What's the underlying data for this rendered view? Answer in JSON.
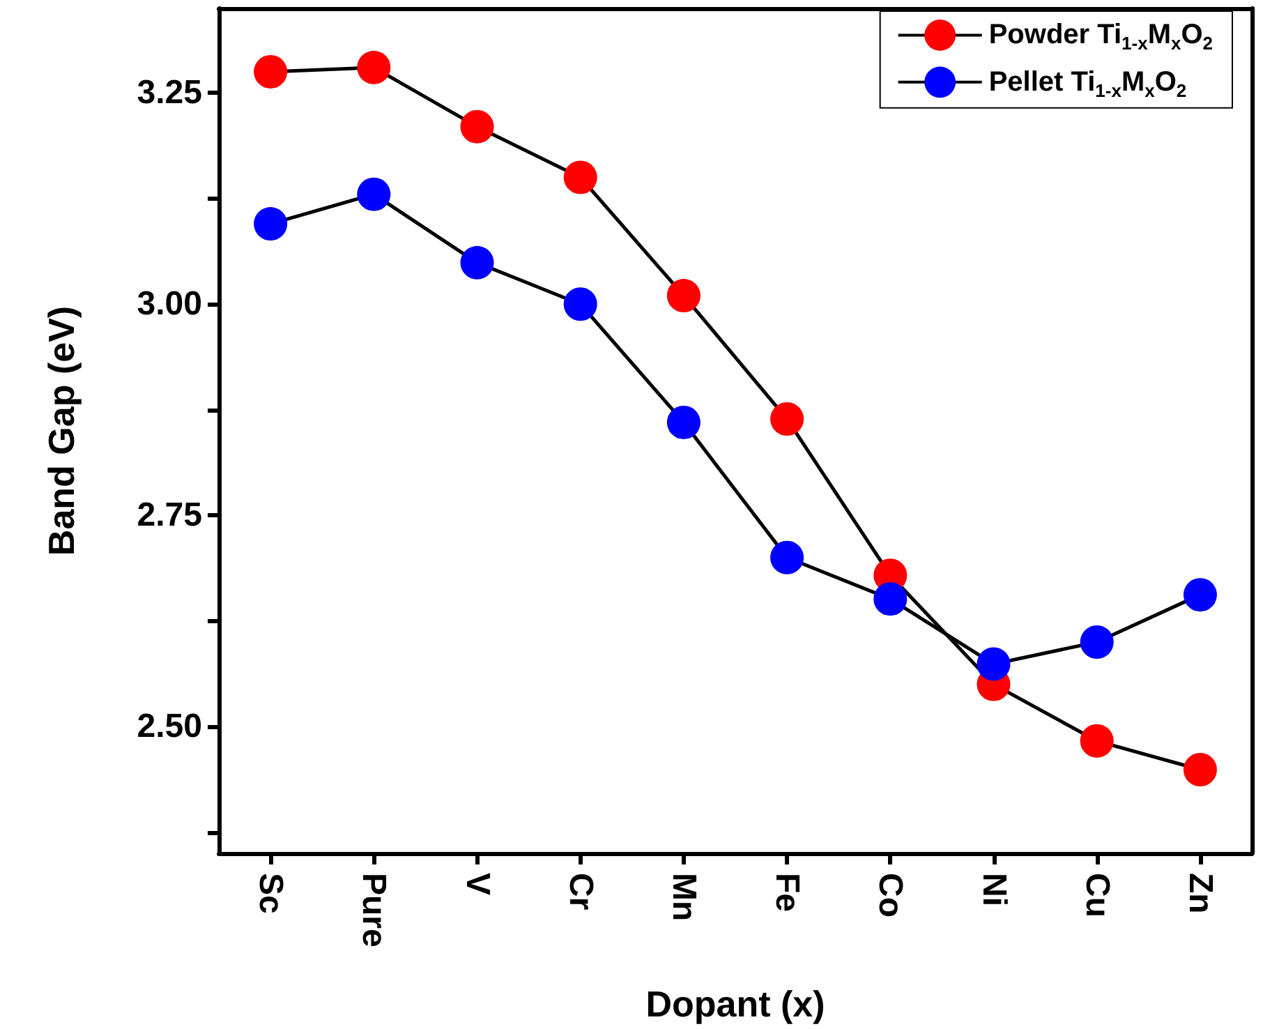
{
  "chart_data": {
    "type": "line",
    "xlabel": "Dopant (x)",
    "ylabel": "Band Gap (eV)",
    "categories": [
      "Sc",
      "Pure",
      "V",
      "Cr",
      "Mn",
      "Fe",
      "Co",
      "Ni",
      "Cu",
      "Zn"
    ],
    "series": [
      {
        "name": "Powder Ti$_{1-x}$M$_{x}$O$_{2}$",
        "color": "#ff0000",
        "values": [
          3.275,
          3.28,
          3.21,
          3.15,
          3.01,
          2.864,
          2.679,
          2.55,
          2.483,
          2.449
        ]
      },
      {
        "name": "Pellet Ti$_{1-x}$M$_{x}$O$_{2}$",
        "color": "#0000ff",
        "values": [
          3.095,
          3.13,
          3.049,
          3.0,
          2.86,
          2.7,
          2.651,
          2.574,
          2.6,
          2.656
        ]
      }
    ],
    "ylim": [
      2.35,
      3.35
    ],
    "yticks": [
      {
        "value": 2.375,
        "label": null
      },
      {
        "value": 2.5,
        "label": "2.50"
      },
      {
        "value": 2.625,
        "label": null
      },
      {
        "value": 2.75,
        "label": "2.75"
      },
      {
        "value": 2.875,
        "label": null
      },
      {
        "value": 3.0,
        "label": "3.00"
      },
      {
        "value": 3.125,
        "label": null
      },
      {
        "value": 3.25,
        "label": "3.25"
      }
    ],
    "grid": false,
    "legend": "top right",
    "marker": "circle",
    "line_style": "solid"
  }
}
